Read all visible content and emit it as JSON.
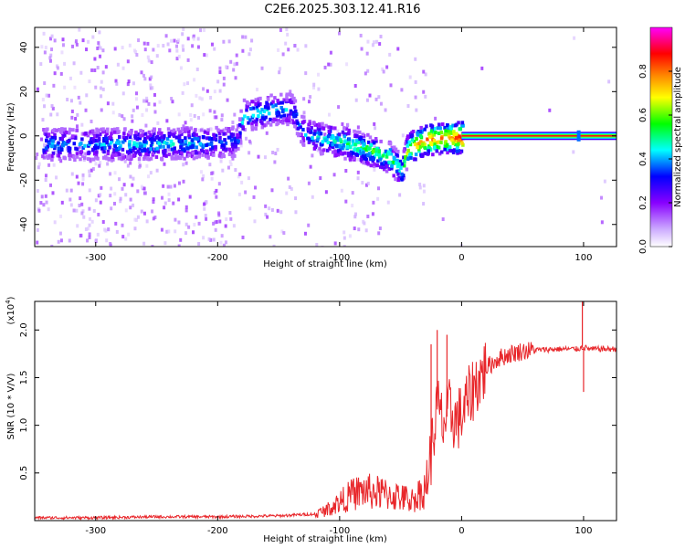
{
  "page_title": "C2E6.2025.303.12.41.R16",
  "chart_data": [
    {
      "type": "heatmap",
      "title": "C2E6.2025.303.12.41.R16",
      "xlabel": "Height of straight line (km)",
      "ylabel": "Frequency (Hz)",
      "xlim": [
        -350,
        127
      ],
      "ylim": [
        -50,
        49
      ],
      "x_ticks": [
        "-300",
        "-200",
        "-100",
        "0",
        "100"
      ],
      "x_tick_values": [
        -300,
        -200,
        -100,
        0,
        100
      ],
      "y_ticks": [
        "-40",
        "-20",
        "0",
        "20",
        "40"
      ],
      "y_tick_values": [
        -40,
        -20,
        0,
        20,
        40
      ],
      "colorbar": {
        "label": "Normalized spectral amplitude",
        "range": [
          0,
          1
        ],
        "ticks": [
          "0.0",
          "0.2",
          "0.4",
          "0.6",
          "0.8"
        ],
        "tick_values": [
          0,
          0.2,
          0.4,
          0.6,
          0.8
        ],
        "colors": [
          "#ffffff",
          "#ccaaff",
          "#8800ff",
          "#0000ff",
          "#00ffff",
          "#00ff00",
          "#ffff00",
          "#ff8800",
          "#ff0000",
          "#ff00ff"
        ]
      },
      "ridge": {
        "description_x": [
          -335,
          -300,
          -250,
          -200,
          -185,
          -180,
          -160,
          -140,
          -130,
          -120,
          -100,
          -80,
          -60,
          -50,
          -45,
          -30,
          -10,
          0,
          127
        ],
        "frequency_y": [
          -3,
          -3,
          -3,
          -2,
          -2,
          10,
          12,
          13,
          2,
          0,
          -2,
          -5,
          -9,
          -15,
          -5,
          -1,
          0,
          0,
          0
        ],
        "peak_amplitude": [
          0.4,
          0.4,
          0.45,
          0.4,
          0.35,
          0.45,
          0.45,
          0.4,
          0.4,
          0.45,
          0.5,
          0.55,
          0.55,
          0.5,
          0.7,
          0.8,
          0.8,
          0.95,
          0.95
        ]
      },
      "stable_line": {
        "x_start": 0,
        "x_end": 127,
        "frequency": 0,
        "marker_at_x": 96
      }
    },
    {
      "type": "line",
      "xlabel": "Height of straight line (km)",
      "ylabel": "SNR (10 * V/V)",
      "y_multiplier": "(x10",
      "y_multiplier_exp": "4",
      "y_multiplier_close": ")",
      "xlim": [
        -350,
        127
      ],
      "ylim": [
        0,
        2.3
      ],
      "x_ticks": [
        "-300",
        "-200",
        "-100",
        "0",
        "100"
      ],
      "x_tick_values": [
        -300,
        -200,
        -100,
        0,
        100
      ],
      "y_ticks": [
        "0.5",
        "1.0",
        "1.5",
        "2.0"
      ],
      "y_tick_values": [
        0.5,
        1.0,
        1.5,
        2.0
      ],
      "series": [
        {
          "name": "SNR",
          "color": "#e8262a",
          "x": [
            -350,
            -300,
            -250,
            -200,
            -150,
            -120,
            -110,
            -100,
            -90,
            -80,
            -70,
            -60,
            -50,
            -40,
            -30,
            -25,
            -20,
            -15,
            -10,
            -5,
            0,
            5,
            10,
            15,
            20,
            25,
            30,
            40,
            50,
            60,
            80,
            90,
            95,
            100,
            105,
            110,
            127
          ],
          "y": [
            0.03,
            0.03,
            0.04,
            0.04,
            0.05,
            0.07,
            0.12,
            0.2,
            0.28,
            0.32,
            0.3,
            0.28,
            0.25,
            0.22,
            0.35,
            0.7,
            1.2,
            1.0,
            1.15,
            1.05,
            1.1,
            1.25,
            1.4,
            1.5,
            1.6,
            1.65,
            1.7,
            1.75,
            1.78,
            1.79,
            1.8,
            1.8,
            1.8,
            1.82,
            1.8,
            1.8,
            1.8
          ],
          "spikes": [
            {
              "x": -25,
              "y": 1.85
            },
            {
              "x": -20,
              "y": 2.0
            },
            {
              "x": -12,
              "y": 1.95
            },
            {
              "x": 99,
              "y": 2.3
            },
            {
              "x": 100,
              "y": 1.35
            }
          ]
        }
      ]
    }
  ]
}
